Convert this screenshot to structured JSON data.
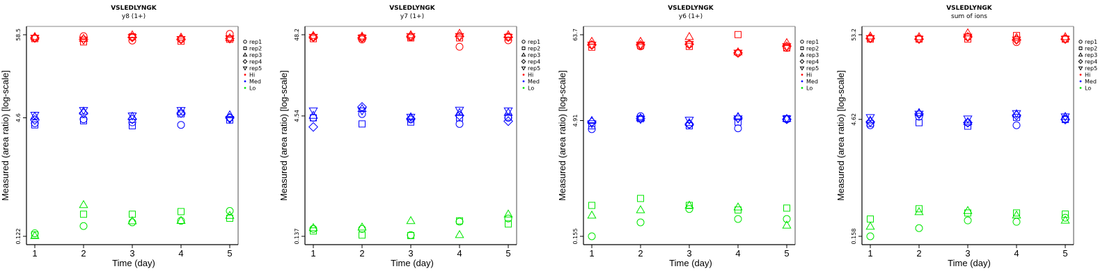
{
  "colors": {
    "Hi": "#ff0000",
    "Med": "#0000ff",
    "Lo": "#00e600",
    "frame": "#000000",
    "frame_right": "#888888"
  },
  "chart_data": [
    {
      "type": "scatter",
      "title": "VSLEDLYNGK",
      "subtitle": "y8 (1+)",
      "xlabel": "Time (day)",
      "ylabel": "Measured (area ratio) [log-scale]",
      "yscale": "log",
      "x": [
        1,
        2,
        3,
        4,
        5
      ],
      "x_tick_labels": [
        "1",
        "2",
        "3",
        "4",
        "5"
      ],
      "y_ticks": [
        0.122,
        4.6,
        58.5
      ],
      "y_tick_labels": [
        "0.122",
        "4.6",
        "58.5"
      ],
      "legend": [
        "rep1",
        "rep2",
        "rep3",
        "rep4",
        "rep5",
        "Hi",
        "Med",
        "Lo"
      ],
      "legend_position": "right",
      "series": [
        {
          "level": "Hi",
          "rep": "rep1",
          "values": [
            53,
            56,
            49,
            51,
            60
          ]
        },
        {
          "level": "Hi",
          "rep": "rep2",
          "values": [
            52,
            47,
            55,
            48,
            51
          ]
        },
        {
          "level": "Hi",
          "rep": "rep3",
          "values": [
            55,
            52,
            58,
            54,
            53
          ]
        },
        {
          "level": "Hi",
          "rep": "rep4",
          "values": [
            53,
            51,
            54,
            51,
            52
          ]
        },
        {
          "level": "Hi",
          "rep": "rep5",
          "values": [
            53,
            50,
            54,
            51,
            52
          ]
        },
        {
          "level": "Med",
          "rep": "rep1",
          "values": [
            3.9,
            4.4,
            4.0,
            3.7,
            4.6
          ]
        },
        {
          "level": "Med",
          "rep": "rep2",
          "values": [
            3.7,
            4.2,
            3.6,
            5.2,
            4.3
          ]
        },
        {
          "level": "Med",
          "rep": "rep3",
          "values": [
            4.8,
            5.6,
            4.8,
            5.5,
            5.0
          ]
        },
        {
          "level": "Med",
          "rep": "rep4",
          "values": [
            4.3,
            5.3,
            4.4,
            5.3,
            4.6
          ]
        },
        {
          "level": "Med",
          "rep": "rep5",
          "values": [
            5.0,
            5.8,
            4.9,
            5.8,
            4.4
          ]
        },
        {
          "level": "Lo",
          "rep": "rep1",
          "values": [
            0.134,
            0.167,
            0.187,
            0.196,
            0.265
          ]
        },
        {
          "level": "Lo",
          "rep": "rep2",
          "values": [
            0.127,
            0.24,
            0.24,
            0.26,
            0.212
          ]
        },
        {
          "level": "Lo",
          "rep": "rep3",
          "values": [
            0.124,
            0.32,
            0.195,
            0.197,
            0.23
          ]
        }
      ]
    },
    {
      "type": "scatter",
      "title": "VSLEDLYNGK",
      "subtitle": "y7 (1+)",
      "xlabel": "Time (day)",
      "ylabel": "Measured (area ratio) [log-scale]",
      "yscale": "log",
      "x": [
        1,
        2,
        3,
        4,
        5
      ],
      "x_tick_labels": [
        "1",
        "2",
        "3",
        "4",
        "5"
      ],
      "y_ticks": [
        0.137,
        4.54,
        48.2
      ],
      "y_tick_labels": [
        "0.137",
        "4.54",
        "48.2"
      ],
      "legend": [
        "rep1",
        "rep2",
        "rep3",
        "rep4",
        "rep5",
        "Hi",
        "Med",
        "Lo"
      ],
      "legend_position": "right",
      "series": [
        {
          "level": "Hi",
          "rep": "rep1",
          "values": [
            45,
            42,
            45,
            34,
            41
          ]
        },
        {
          "level": "Hi",
          "rep": "rep2",
          "values": [
            43,
            44,
            44,
            44,
            45
          ]
        },
        {
          "level": "Hi",
          "rep": "rep3",
          "values": [
            47,
            46,
            48,
            50,
            48
          ]
        },
        {
          "level": "Hi",
          "rep": "rep4",
          "values": [
            45,
            44,
            46,
            46,
            45
          ]
        },
        {
          "level": "Hi",
          "rep": "rep5",
          "values": [
            45,
            44,
            46,
            46,
            45
          ]
        },
        {
          "level": "Med",
          "rep": "rep1",
          "values": [
            4.3,
            4.8,
            4.1,
            3.6,
            4.3
          ]
        },
        {
          "level": "Med",
          "rep": "rep2",
          "values": [
            4.3,
            3.6,
            3.8,
            4.3,
            4.4
          ]
        },
        {
          "level": "Med",
          "rep": "rep3",
          "values": [
            4.6,
            5.6,
            4.4,
            5.0,
            5.0
          ]
        },
        {
          "level": "Med",
          "rep": "rep4",
          "values": [
            3.3,
            5.9,
            4.2,
            4.6,
            3.9
          ]
        },
        {
          "level": "Med",
          "rep": "rep5",
          "values": [
            5.3,
            5.3,
            4.4,
            5.4,
            5.3
          ]
        },
        {
          "level": "Lo",
          "rep": "rep1",
          "values": [
            0.17,
            0.17,
            0.142,
            0.21,
            0.23
          ]
        },
        {
          "level": "Lo",
          "rep": "rep2",
          "values": [
            0.16,
            0.142,
            0.14,
            0.215,
            0.196
          ]
        },
        {
          "level": "Lo",
          "rep": "rep3",
          "values": [
            0.175,
            0.178,
            0.215,
            0.143,
            0.26
          ]
        }
      ]
    },
    {
      "type": "scatter",
      "title": "VSLEDLYNGK",
      "subtitle": "y6 (1+)",
      "xlabel": "Time (day)",
      "ylabel": "Measured (area ratio) [log-scale]",
      "yscale": "log",
      "x": [
        1,
        2,
        3,
        4,
        5
      ],
      "x_tick_labels": [
        "1",
        "2",
        "3",
        "4",
        "5"
      ],
      "y_ticks": [
        0.155,
        4.91,
        63.7
      ],
      "y_tick_labels": [
        "0.155",
        "4.91",
        "63.7"
      ],
      "legend": [
        "rep1",
        "rep2",
        "rep3",
        "rep4",
        "rep5",
        "Hi",
        "Med",
        "Lo"
      ],
      "legend_position": "right",
      "series": [
        {
          "level": "Hi",
          "rep": "rep1",
          "values": [
            47,
            45,
            48,
            37,
            43
          ]
        },
        {
          "level": "Hi",
          "rep": "rep2",
          "values": [
            44,
            46,
            45,
            64,
            43
          ]
        },
        {
          "level": "Hi",
          "rep": "rep3",
          "values": [
            52,
            52,
            60,
            38,
            50
          ]
        },
        {
          "level": "Hi",
          "rep": "rep4",
          "values": [
            47,
            47,
            48,
            37,
            45
          ]
        },
        {
          "level": "Hi",
          "rep": "rep5",
          "values": [
            47,
            47,
            48,
            37,
            45
          ]
        },
        {
          "level": "Med",
          "rep": "rep1",
          "values": [
            3.8,
            5.6,
            4.4,
            3.9,
            5.1
          ]
        },
        {
          "level": "Med",
          "rep": "rep2",
          "values": [
            4.2,
            5.2,
            4.2,
            4.7,
            5.2
          ]
        },
        {
          "level": "Med",
          "rep": "rep3",
          "values": [
            4.9,
            5.3,
            4.6,
            5.5,
            5.2
          ]
        },
        {
          "level": "Med",
          "rep": "rep4",
          "values": [
            4.7,
            5.2,
            4.4,
            5.3,
            5.1
          ]
        },
        {
          "level": "Med",
          "rep": "rep5",
          "values": [
            4.5,
            5.1,
            5.0,
            5.2,
            5.2
          ]
        },
        {
          "level": "Lo",
          "rep": "rep1",
          "values": [
            0.155,
            0.235,
            0.35,
            0.26,
            0.26
          ]
        },
        {
          "level": "Lo",
          "rep": "rep2",
          "values": [
            0.39,
            0.48,
            0.39,
            0.34,
            0.36
          ]
        },
        {
          "level": "Lo",
          "rep": "rep3",
          "values": [
            0.29,
            0.34,
            0.39,
            0.37,
            0.215
          ]
        }
      ]
    },
    {
      "type": "scatter",
      "title": "VSLEDLYNGK",
      "subtitle": "sum of ions",
      "xlabel": "Time (day)",
      "ylabel": "Measured (area ratio) [log-scale]",
      "yscale": "log",
      "x": [
        1,
        2,
        3,
        4,
        5
      ],
      "x_tick_labels": [
        "1",
        "2",
        "3",
        "4",
        "5"
      ],
      "y_ticks": [
        0.158,
        4.62,
        53.2
      ],
      "y_tick_labels": [
        "0.158",
        "4.62",
        "53.2"
      ],
      "legend": [
        "rep1",
        "rep2",
        "rep3",
        "rep4",
        "rep5",
        "Hi",
        "Med",
        "Lo"
      ],
      "legend_position": "right",
      "series": [
        {
          "level": "Hi",
          "rep": "rep1",
          "values": [
            48,
            47,
            50,
            43,
            47
          ]
        },
        {
          "level": "Hi",
          "rep": "rep2",
          "values": [
            47,
            47,
            47,
            52,
            47
          ]
        },
        {
          "level": "Hi",
          "rep": "rep3",
          "values": [
            51,
            50,
            56,
            49,
            50
          ]
        },
        {
          "level": "Hi",
          "rep": "rep4",
          "values": [
            48,
            47,
            50,
            46,
            47
          ]
        },
        {
          "level": "Hi",
          "rep": "rep5",
          "values": [
            48,
            47,
            50,
            46,
            47
          ]
        },
        {
          "level": "Med",
          "rep": "rep1",
          "values": [
            3.9,
            5.0,
            4.2,
            3.9,
            4.7
          ]
        },
        {
          "level": "Med",
          "rep": "rep2",
          "values": [
            4.1,
            4.2,
            3.8,
            4.9,
            4.6
          ]
        },
        {
          "level": "Med",
          "rep": "rep3",
          "values": [
            4.5,
            5.6,
            4.3,
            5.4,
            5.0
          ]
        },
        {
          "level": "Med",
          "rep": "rep4",
          "values": [
            4.3,
            5.4,
            4.2,
            5.2,
            4.6
          ]
        },
        {
          "level": "Med",
          "rep": "rep5",
          "values": [
            4.9,
            5.4,
            4.7,
            5.5,
            5.0
          ]
        },
        {
          "level": "Lo",
          "rep": "rep1",
          "values": [
            0.158,
            0.2,
            0.25,
            0.24,
            0.27
          ]
        },
        {
          "level": "Lo",
          "rep": "rep2",
          "values": [
            0.26,
            0.35,
            0.31,
            0.31,
            0.3
          ]
        },
        {
          "level": "Lo",
          "rep": "rep3",
          "values": [
            0.21,
            0.32,
            0.33,
            0.29,
            0.25
          ]
        }
      ]
    }
  ]
}
